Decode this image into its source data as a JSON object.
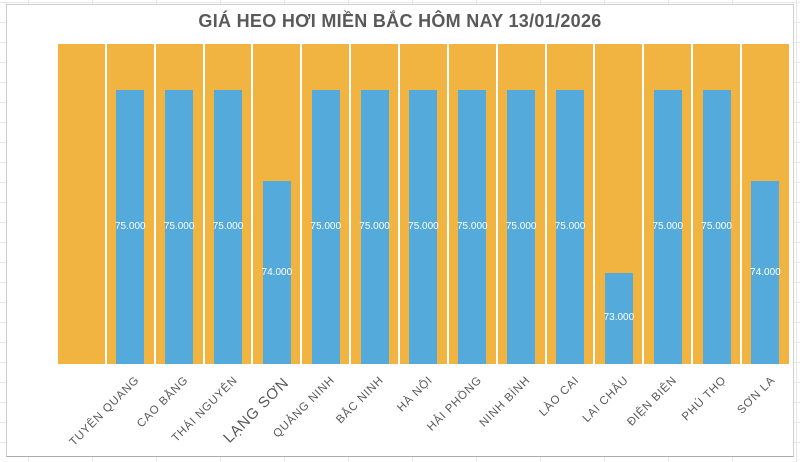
{
  "chart_data": {
    "type": "bar",
    "title": "GIÁ HEO HƠI MIỀN BẮC HÔM NAY 13/01/2026",
    "categories": [
      "TUYÊN QUANG",
      "CAO BẰNG",
      "THÁI NGUYÊN",
      "LẠNG SƠN",
      "QUẢNG NINH",
      "BẮC NINH",
      "HÀ NỘI",
      "HẢI PHÒNG",
      "NINH BÌNH",
      "LÀO CAI",
      "LAI CHÂU",
      "ĐIỆN BIÊN",
      "PHÚ THỌ",
      "SƠN LA"
    ],
    "values": [
      75000,
      75000,
      75000,
      74000,
      75000,
      75000,
      75000,
      75000,
      75000,
      75000,
      73000,
      75000,
      75000,
      74000
    ],
    "value_labels": [
      "75.000",
      "75.000",
      "75.000",
      "74.000",
      "75.000",
      "75.000",
      "75.000",
      "75.000",
      "75.000",
      "75.000",
      "73.000",
      "75.000",
      "75.000",
      "74.000"
    ],
    "xlabel": "",
    "ylabel": "",
    "ylim": [
      72000,
      75500
    ],
    "grid": "off",
    "legend": "none",
    "bar_color": "#55AADC",
    "bar_label_color": "#FFFFFF",
    "background_bar_color": "#F2B440",
    "background_bar_value": 75500,
    "leading_empty_slot": true,
    "emphasized_category": "LẠNG SƠN"
  },
  "page": {
    "axis_label_color": "#595959",
    "title_color": "#595959",
    "spreadsheet_grid_color": "#E7E7E7",
    "chart_border_color": "#CFCFCF"
  }
}
